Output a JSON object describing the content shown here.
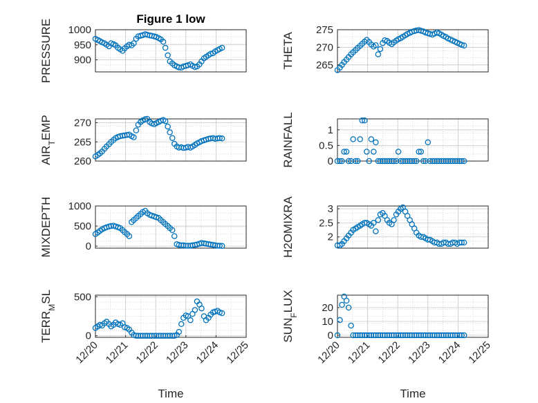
{
  "chart_data": [
    {
      "type": "scatter",
      "title": "Figure 1 low",
      "ylabel": "PRESSURE",
      "ylim": [
        860,
        1000
      ],
      "yticks": [
        900,
        950,
        1000
      ],
      "xlim": [
        0,
        5
      ],
      "xticks": [],
      "grid": "on",
      "marker": "circle-open",
      "color": "#0072BD",
      "x": [
        0.0,
        0.08,
        0.15,
        0.22,
        0.3,
        0.37,
        0.45,
        0.52,
        0.6,
        0.67,
        0.75,
        0.82,
        0.9,
        0.97,
        1.05,
        1.12,
        1.2,
        1.27,
        1.35,
        1.42,
        1.5,
        1.57,
        1.65,
        1.72,
        1.8,
        1.87,
        1.95,
        2.02,
        2.1,
        2.17,
        2.25,
        2.32,
        2.4,
        2.47,
        2.55,
        2.62,
        2.7,
        2.77,
        2.85,
        2.92,
        3.0,
        3.07,
        3.15,
        3.22,
        3.3,
        3.37,
        3.45,
        3.52,
        3.6,
        3.67,
        3.75,
        3.82,
        3.9,
        3.97,
        4.05,
        4.12,
        4.2
      ],
      "y": [
        970,
        966,
        962,
        958,
        955,
        950,
        945,
        955,
        952,
        948,
        940,
        935,
        930,
        938,
        945,
        950,
        948,
        955,
        970,
        978,
        980,
        982,
        985,
        983,
        981,
        980,
        978,
        976,
        972,
        968,
        960,
        940,
        915,
        895,
        888,
        882,
        878,
        875,
        874,
        878,
        880,
        882,
        885,
        880,
        876,
        878,
        885,
        895,
        905,
        910,
        915,
        920,
        922,
        928,
        932,
        936,
        940
      ]
    },
    {
      "type": "scatter",
      "title": "",
      "ylabel": "THETA",
      "ylim": [
        263,
        275
      ],
      "yticks": [
        265,
        270,
        275
      ],
      "xlim": [
        0,
        5
      ],
      "xticks": [],
      "grid": "on",
      "marker": "circle-open",
      "color": "#0072BD",
      "x": [
        0.0,
        0.08,
        0.15,
        0.22,
        0.3,
        0.37,
        0.45,
        0.52,
        0.6,
        0.67,
        0.75,
        0.82,
        0.9,
        0.97,
        1.05,
        1.12,
        1.2,
        1.27,
        1.35,
        1.42,
        1.5,
        1.57,
        1.65,
        1.72,
        1.8,
        1.87,
        1.95,
        2.02,
        2.1,
        2.17,
        2.25,
        2.32,
        2.4,
        2.47,
        2.55,
        2.62,
        2.7,
        2.77,
        2.85,
        2.92,
        3.0,
        3.07,
        3.15,
        3.22,
        3.3,
        3.37,
        3.45,
        3.52,
        3.6,
        3.67,
        3.75,
        3.82,
        3.9,
        3.97,
        4.05,
        4.12,
        4.2
      ],
      "y": [
        263.5,
        264.2,
        265.0,
        265.8,
        266.5,
        267.2,
        268.0,
        268.6,
        269.2,
        269.8,
        270.4,
        271.0,
        271.6,
        272.1,
        271.5,
        270.8,
        270.2,
        270.6,
        268.0,
        269.5,
        271.2,
        272.0,
        271.8,
        271.3,
        270.9,
        271.4,
        271.9,
        272.3,
        272.6,
        273.0,
        273.4,
        273.8,
        274.1,
        274.4,
        274.6,
        274.8,
        274.9,
        274.7,
        274.5,
        274.2,
        274.0,
        273.8,
        273.6,
        273.9,
        274.2,
        274.0,
        273.6,
        273.2,
        272.9,
        272.5,
        272.2,
        271.9,
        271.6,
        271.3,
        271.0,
        270.7,
        270.5
      ]
    },
    {
      "type": "scatter",
      "title": "",
      "ylabel": "AIR_TEMP",
      "ylim": [
        260,
        271
      ],
      "yticks": [
        260,
        265,
        270
      ],
      "xlim": [
        0,
        5
      ],
      "xticks": [],
      "grid": "on",
      "marker": "circle-open",
      "color": "#0072BD",
      "x": [
        0.0,
        0.08,
        0.15,
        0.22,
        0.3,
        0.37,
        0.45,
        0.52,
        0.6,
        0.67,
        0.75,
        0.82,
        0.9,
        0.97,
        1.05,
        1.12,
        1.2,
        1.27,
        1.35,
        1.42,
        1.5,
        1.57,
        1.65,
        1.72,
        1.8,
        1.87,
        1.95,
        2.02,
        2.1,
        2.17,
        2.25,
        2.32,
        2.4,
        2.47,
        2.55,
        2.62,
        2.7,
        2.77,
        2.85,
        2.92,
        3.0,
        3.07,
        3.15,
        3.22,
        3.3,
        3.37,
        3.45,
        3.52,
        3.6,
        3.67,
        3.75,
        3.82,
        3.9,
        3.97,
        4.05,
        4.12,
        4.2
      ],
      "y": [
        261.2,
        261.6,
        262.0,
        262.5,
        263.2,
        263.8,
        264.4,
        265.0,
        265.5,
        266.0,
        266.3,
        266.5,
        266.6,
        266.7,
        266.8,
        266.9,
        266.5,
        266.2,
        268.0,
        269.5,
        270.2,
        270.6,
        270.9,
        271.0,
        270.2,
        269.8,
        269.6,
        269.9,
        270.2,
        270.5,
        270.7,
        270.4,
        269.0,
        267.5,
        266.0,
        264.5,
        263.8,
        263.5,
        263.6,
        263.4,
        263.5,
        263.7,
        263.5,
        263.8,
        264.2,
        264.6,
        264.9,
        265.2,
        265.4,
        265.6,
        265.8,
        265.9,
        266.0,
        265.8,
        265.9,
        266.0,
        265.9
      ]
    },
    {
      "type": "scatter",
      "title": "",
      "ylabel": "RAINFALL",
      "ylim": [
        0,
        1.35
      ],
      "yticks": [
        0,
        0.5,
        1
      ],
      "xlim": [
        0,
        5
      ],
      "xticks": [],
      "grid": "on",
      "marker": "circle-open",
      "color": "#0072BD",
      "x": [
        0.0,
        0.08,
        0.15,
        0.22,
        0.3,
        0.37,
        0.45,
        0.52,
        0.6,
        0.67,
        0.75,
        0.82,
        0.9,
        0.97,
        1.05,
        1.12,
        1.2,
        1.27,
        1.35,
        1.42,
        1.5,
        1.57,
        1.65,
        1.72,
        1.8,
        1.87,
        1.95,
        2.02,
        2.1,
        2.17,
        2.25,
        2.32,
        2.4,
        2.47,
        2.55,
        2.62,
        2.7,
        2.77,
        2.85,
        2.92,
        3.0,
        3.07,
        3.15,
        3.22,
        3.3,
        3.37,
        3.45,
        3.52,
        3.6,
        3.67,
        3.75,
        3.82,
        3.9,
        3.97,
        4.05,
        4.12,
        4.2
      ],
      "y": [
        0,
        0,
        0,
        0.3,
        0.3,
        0,
        0,
        0.7,
        0,
        0,
        0.7,
        1.3,
        1.3,
        0.3,
        0,
        0.7,
        0.3,
        0.6,
        0,
        0,
        0,
        0,
        0,
        0,
        0,
        0,
        0,
        0.3,
        0,
        0,
        0,
        0,
        0,
        0,
        0,
        0,
        0.3,
        0.3,
        0,
        0,
        0.6,
        0,
        0,
        0,
        0,
        0,
        0,
        0,
        0,
        0,
        0,
        0,
        0,
        0,
        0,
        0,
        0
      ]
    },
    {
      "type": "scatter",
      "title": "",
      "ylabel": "MIXDEPTH",
      "ylim": [
        -50,
        1000
      ],
      "yticks": [
        0,
        500,
        1000
      ],
      "xlim": [
        0,
        5
      ],
      "xticks": [],
      "grid": "on",
      "marker": "circle-open",
      "color": "#0072BD",
      "x": [
        0.0,
        0.08,
        0.15,
        0.22,
        0.3,
        0.37,
        0.45,
        0.52,
        0.6,
        0.67,
        0.75,
        0.82,
        0.9,
        0.97,
        1.05,
        1.12,
        1.2,
        1.27,
        1.35,
        1.42,
        1.5,
        1.57,
        1.65,
        1.72,
        1.8,
        1.87,
        1.95,
        2.02,
        2.1,
        2.17,
        2.25,
        2.32,
        2.4,
        2.47,
        2.55,
        2.62,
        2.7,
        2.77,
        2.85,
        2.92,
        3.0,
        3.07,
        3.15,
        3.22,
        3.3,
        3.37,
        3.45,
        3.52,
        3.6,
        3.67,
        3.75,
        3.82,
        3.9,
        3.97,
        4.05,
        4.12,
        4.2
      ],
      "y": [
        300,
        340,
        380,
        420,
        450,
        470,
        490,
        500,
        510,
        490,
        470,
        450,
        400,
        350,
        300,
        250,
        600,
        650,
        700,
        750,
        800,
        850,
        880,
        820,
        780,
        760,
        740,
        720,
        700,
        650,
        600,
        550,
        500,
        450,
        400,
        250,
        50,
        30,
        20,
        20,
        10,
        10,
        10,
        20,
        30,
        40,
        60,
        80,
        70,
        60,
        50,
        40,
        30,
        20,
        10,
        10,
        5
      ]
    },
    {
      "type": "scatter",
      "title": "",
      "ylabel": "H2OMIXRA",
      "ylim": [
        1.6,
        3.1
      ],
      "yticks": [
        2,
        2.5,
        3
      ],
      "xlim": [
        0,
        5
      ],
      "xticks": [],
      "grid": "on",
      "marker": "circle-open",
      "color": "#0072BD",
      "x": [
        0.0,
        0.08,
        0.15,
        0.22,
        0.3,
        0.37,
        0.45,
        0.52,
        0.6,
        0.67,
        0.75,
        0.82,
        0.9,
        0.97,
        1.05,
        1.12,
        1.2,
        1.27,
        1.35,
        1.42,
        1.5,
        1.57,
        1.65,
        1.72,
        1.8,
        1.87,
        1.95,
        2.02,
        2.1,
        2.17,
        2.25,
        2.32,
        2.4,
        2.47,
        2.55,
        2.62,
        2.7,
        2.77,
        2.85,
        2.92,
        3.0,
        3.07,
        3.15,
        3.22,
        3.3,
        3.37,
        3.45,
        3.52,
        3.6,
        3.67,
        3.75,
        3.82,
        3.9,
        3.97,
        4.05,
        4.12,
        4.2
      ],
      "y": [
        1.7,
        1.7,
        1.75,
        1.85,
        1.95,
        2.05,
        2.15,
        2.25,
        2.3,
        2.35,
        2.4,
        2.45,
        2.5,
        2.5,
        2.45,
        2.4,
        2.5,
        2.2,
        2.6,
        2.8,
        2.85,
        2.75,
        2.6,
        2.5,
        2.45,
        2.6,
        2.8,
        2.9,
        3.0,
        3.05,
        2.9,
        2.75,
        2.6,
        2.45,
        2.3,
        2.15,
        2.05,
        2.0,
        2.0,
        1.95,
        1.9,
        1.9,
        1.85,
        1.8,
        1.8,
        1.75,
        1.75,
        1.8,
        1.8,
        1.75,
        1.75,
        1.8,
        1.8,
        1.75,
        1.8,
        1.8,
        1.8
      ]
    },
    {
      "type": "scatter",
      "title": "",
      "ylabel": "TERR_MSL",
      "xlabel": "Time",
      "ylim": [
        -20,
        520
      ],
      "yticks": [
        0,
        500
      ],
      "xlim": [
        0,
        5
      ],
      "xticks": [
        0,
        1,
        2,
        3,
        4,
        5
      ],
      "xticklabels": [
        "12/20",
        "12/21",
        "12/22",
        "12/23",
        "12/24",
        "12/25"
      ],
      "grid": "on",
      "marker": "circle-open",
      "color": "#0072BD",
      "x": [
        0.0,
        0.08,
        0.15,
        0.22,
        0.3,
        0.37,
        0.45,
        0.52,
        0.6,
        0.67,
        0.75,
        0.82,
        0.9,
        0.97,
        1.05,
        1.12,
        1.2,
        1.27,
        1.35,
        1.42,
        1.5,
        1.57,
        1.65,
        1.72,
        1.8,
        1.87,
        1.95,
        2.02,
        2.1,
        2.17,
        2.25,
        2.32,
        2.4,
        2.47,
        2.55,
        2.62,
        2.7,
        2.77,
        2.85,
        2.92,
        3.0,
        3.07,
        3.15,
        3.22,
        3.3,
        3.37,
        3.45,
        3.52,
        3.6,
        3.67,
        3.75,
        3.82,
        3.9,
        3.97,
        4.05,
        4.12,
        4.2
      ],
      "y": [
        100,
        120,
        140,
        130,
        160,
        180,
        150,
        120,
        140,
        170,
        150,
        140,
        160,
        110,
        100,
        80,
        40,
        10,
        0,
        0,
        0,
        0,
        0,
        0,
        0,
        0,
        0,
        0,
        0,
        0,
        0,
        0,
        0,
        0,
        0,
        0,
        10,
        50,
        150,
        230,
        260,
        250,
        200,
        280,
        330,
        440,
        400,
        350,
        250,
        200,
        230,
        270,
        300,
        310,
        320,
        300,
        290
      ]
    },
    {
      "type": "scatter",
      "title": "",
      "ylabel": "SUN_FLUX",
      "xlabel": "Time",
      "ylim": [
        -1.5,
        29
      ],
      "yticks": [
        0,
        10,
        20
      ],
      "xlim": [
        0,
        5
      ],
      "xticks": [
        0,
        1,
        2,
        3,
        4,
        5
      ],
      "xticklabels": [
        "12/20",
        "12/21",
        "12/22",
        "12/23",
        "12/24",
        "12/25"
      ],
      "grid": "on",
      "marker": "circle-open",
      "color": "#0072BD",
      "x": [
        0.0,
        0.08,
        0.15,
        0.22,
        0.3,
        0.37,
        0.45,
        0.52,
        0.6,
        0.67,
        0.75,
        0.82,
        0.9,
        0.97,
        1.05,
        1.12,
        1.2,
        1.27,
        1.35,
        1.42,
        1.5,
        1.57,
        1.65,
        1.72,
        1.8,
        1.87,
        1.95,
        2.02,
        2.1,
        2.17,
        2.25,
        2.32,
        2.4,
        2.47,
        2.55,
        2.62,
        2.7,
        2.77,
        2.85,
        2.92,
        3.0,
        3.07,
        3.15,
        3.22,
        3.3,
        3.37,
        3.45,
        3.52,
        3.6,
        3.67,
        3.75,
        3.82,
        3.9,
        3.97,
        4.05,
        4.12,
        4.2
      ],
      "y": [
        0,
        11,
        22,
        28,
        25,
        20,
        7,
        0,
        0,
        0,
        0,
        0,
        0,
        0,
        0,
        0,
        0,
        0,
        0,
        0,
        0,
        0,
        0,
        0,
        0,
        0,
        0,
        0,
        0,
        0,
        0,
        0,
        0,
        0,
        0,
        0,
        0,
        0,
        0,
        0,
        0,
        0,
        0,
        0,
        0,
        0,
        0,
        0,
        0,
        0,
        0,
        0,
        0,
        0,
        0,
        0,
        0
      ]
    }
  ]
}
